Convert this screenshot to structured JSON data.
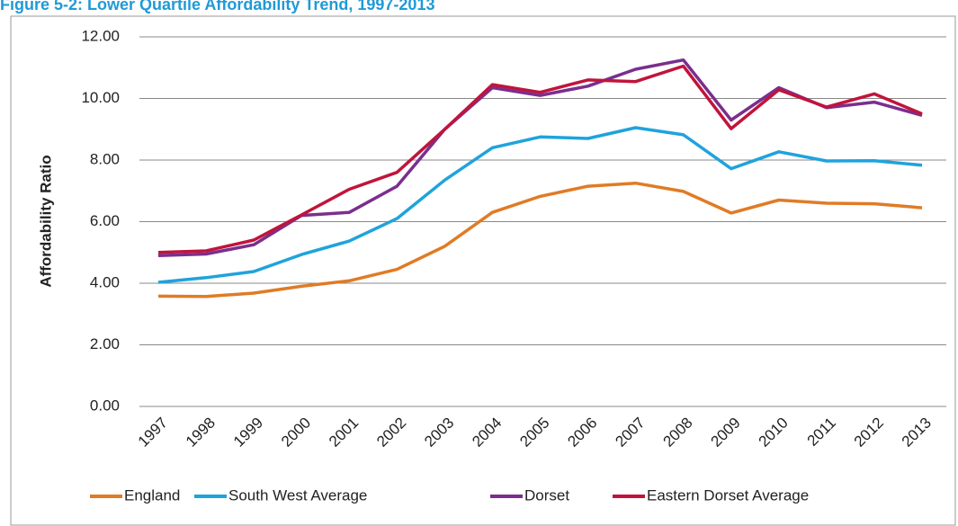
{
  "chart_data": {
    "type": "line",
    "title": "Figure 5-2: Lower Quartile Affordability Trend, 1997-2013",
    "y_label": "Affordability Ratio",
    "categories": [
      "1997",
      "1998",
      "1999",
      "2000",
      "2001",
      "2002",
      "2003",
      "2004",
      "2005",
      "2006",
      "2007",
      "2008",
      "2009",
      "2010",
      "2011",
      "2012",
      "2013"
    ],
    "series": [
      {
        "name": "England",
        "color": "#e07b25",
        "values": [
          3.58,
          3.57,
          3.68,
          3.9,
          4.08,
          4.45,
          5.2,
          6.3,
          6.82,
          7.15,
          7.25,
          6.98,
          6.28,
          6.7,
          6.6,
          6.58,
          6.45
        ]
      },
      {
        "name": "South West Average",
        "color": "#1fa3dc",
        "values": [
          4.03,
          4.18,
          4.38,
          4.93,
          5.37,
          6.1,
          7.35,
          8.4,
          8.75,
          8.7,
          9.05,
          8.82,
          7.72,
          8.27,
          7.97,
          7.98,
          7.83
        ]
      },
      {
        "name": "Dorset",
        "color": "#7b2e8e",
        "values": [
          4.9,
          4.95,
          5.25,
          6.2,
          6.3,
          7.15,
          9.0,
          10.35,
          10.1,
          10.4,
          10.95,
          11.25,
          9.3,
          10.35,
          9.7,
          9.88,
          9.45
        ]
      },
      {
        "name": "Eastern Dorset Average",
        "color": "#c0143c",
        "values": [
          5.0,
          5.05,
          5.4,
          6.22,
          7.05,
          7.6,
          9.0,
          10.45,
          10.2,
          10.6,
          10.55,
          11.05,
          9.02,
          10.28,
          9.72,
          10.15,
          9.5
        ]
      }
    ],
    "ylim": [
      0,
      12
    ],
    "yticks": [
      {
        "value": 0,
        "label": "0.00"
      },
      {
        "value": 2,
        "label": "2.00"
      },
      {
        "value": 4,
        "label": "4.00"
      },
      {
        "value": 6,
        "label": "6.00"
      },
      {
        "value": 8,
        "label": "8.00"
      },
      {
        "value": 10,
        "label": "10.00"
      },
      {
        "value": 12,
        "label": "12.00"
      }
    ],
    "grid": true,
    "legend": "bottom"
  }
}
